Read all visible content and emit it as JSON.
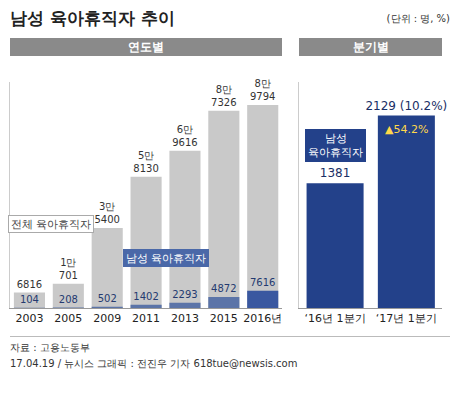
{
  "title": "남성 육아휴직자 추이",
  "unit": "(단위 : 명, %)",
  "source": "자료 : 고용노동부",
  "credit": "17.04.19 / 뉴시스 그래픽 : 전진우 기자 618tue@newsis.com",
  "chart_data": [
    {
      "type": "bar",
      "title": "연도별",
      "categories": [
        "2003",
        "2005",
        "2009",
        "2011",
        "2013",
        "2015",
        "2016년"
      ],
      "series": [
        {
          "name": "전체 육아휴직자",
          "color": "#c9c9c9",
          "values": [
            6816,
            10701,
            35400,
            58130,
            69616,
            87326,
            89794
          ],
          "value_labels": [
            "6816",
            "1만 701",
            "3만 5400",
            "5만 8130",
            "6만 9616",
            "8만 7326",
            "8만 9794"
          ]
        },
        {
          "name": "남성 육아휴직자",
          "colors": [
            "#5b74a8",
            "#5b74a8",
            "#5b74a8",
            "#5b74a8",
            "#5b74a8",
            "#5b74a8",
            "#3a58a0"
          ],
          "values": [
            104,
            208,
            502,
            1402,
            2293,
            4872,
            7616
          ]
        }
      ],
      "ylim": [
        0,
        100000
      ],
      "yticks": [],
      "grid": false,
      "data_labels": true,
      "tick_labels": "x"
    },
    {
      "type": "bar",
      "title": "분기별",
      "categories": [
        "‘16년 1분기",
        "‘17년 1분기"
      ],
      "series": [
        {
          "name": "남성 육아휴직자",
          "color": "#23418a",
          "values": [
            1381,
            2129
          ],
          "value_labels": [
            "1381",
            "2129 (10.2%)"
          ]
        }
      ],
      "annotations": [
        {
          "text": "▲54.2%",
          "category": "‘17년 1분기"
        }
      ],
      "ylim": [
        0,
        2500
      ],
      "yticks": [],
      "grid": false,
      "data_labels": true,
      "tick_labels": "x"
    }
  ]
}
